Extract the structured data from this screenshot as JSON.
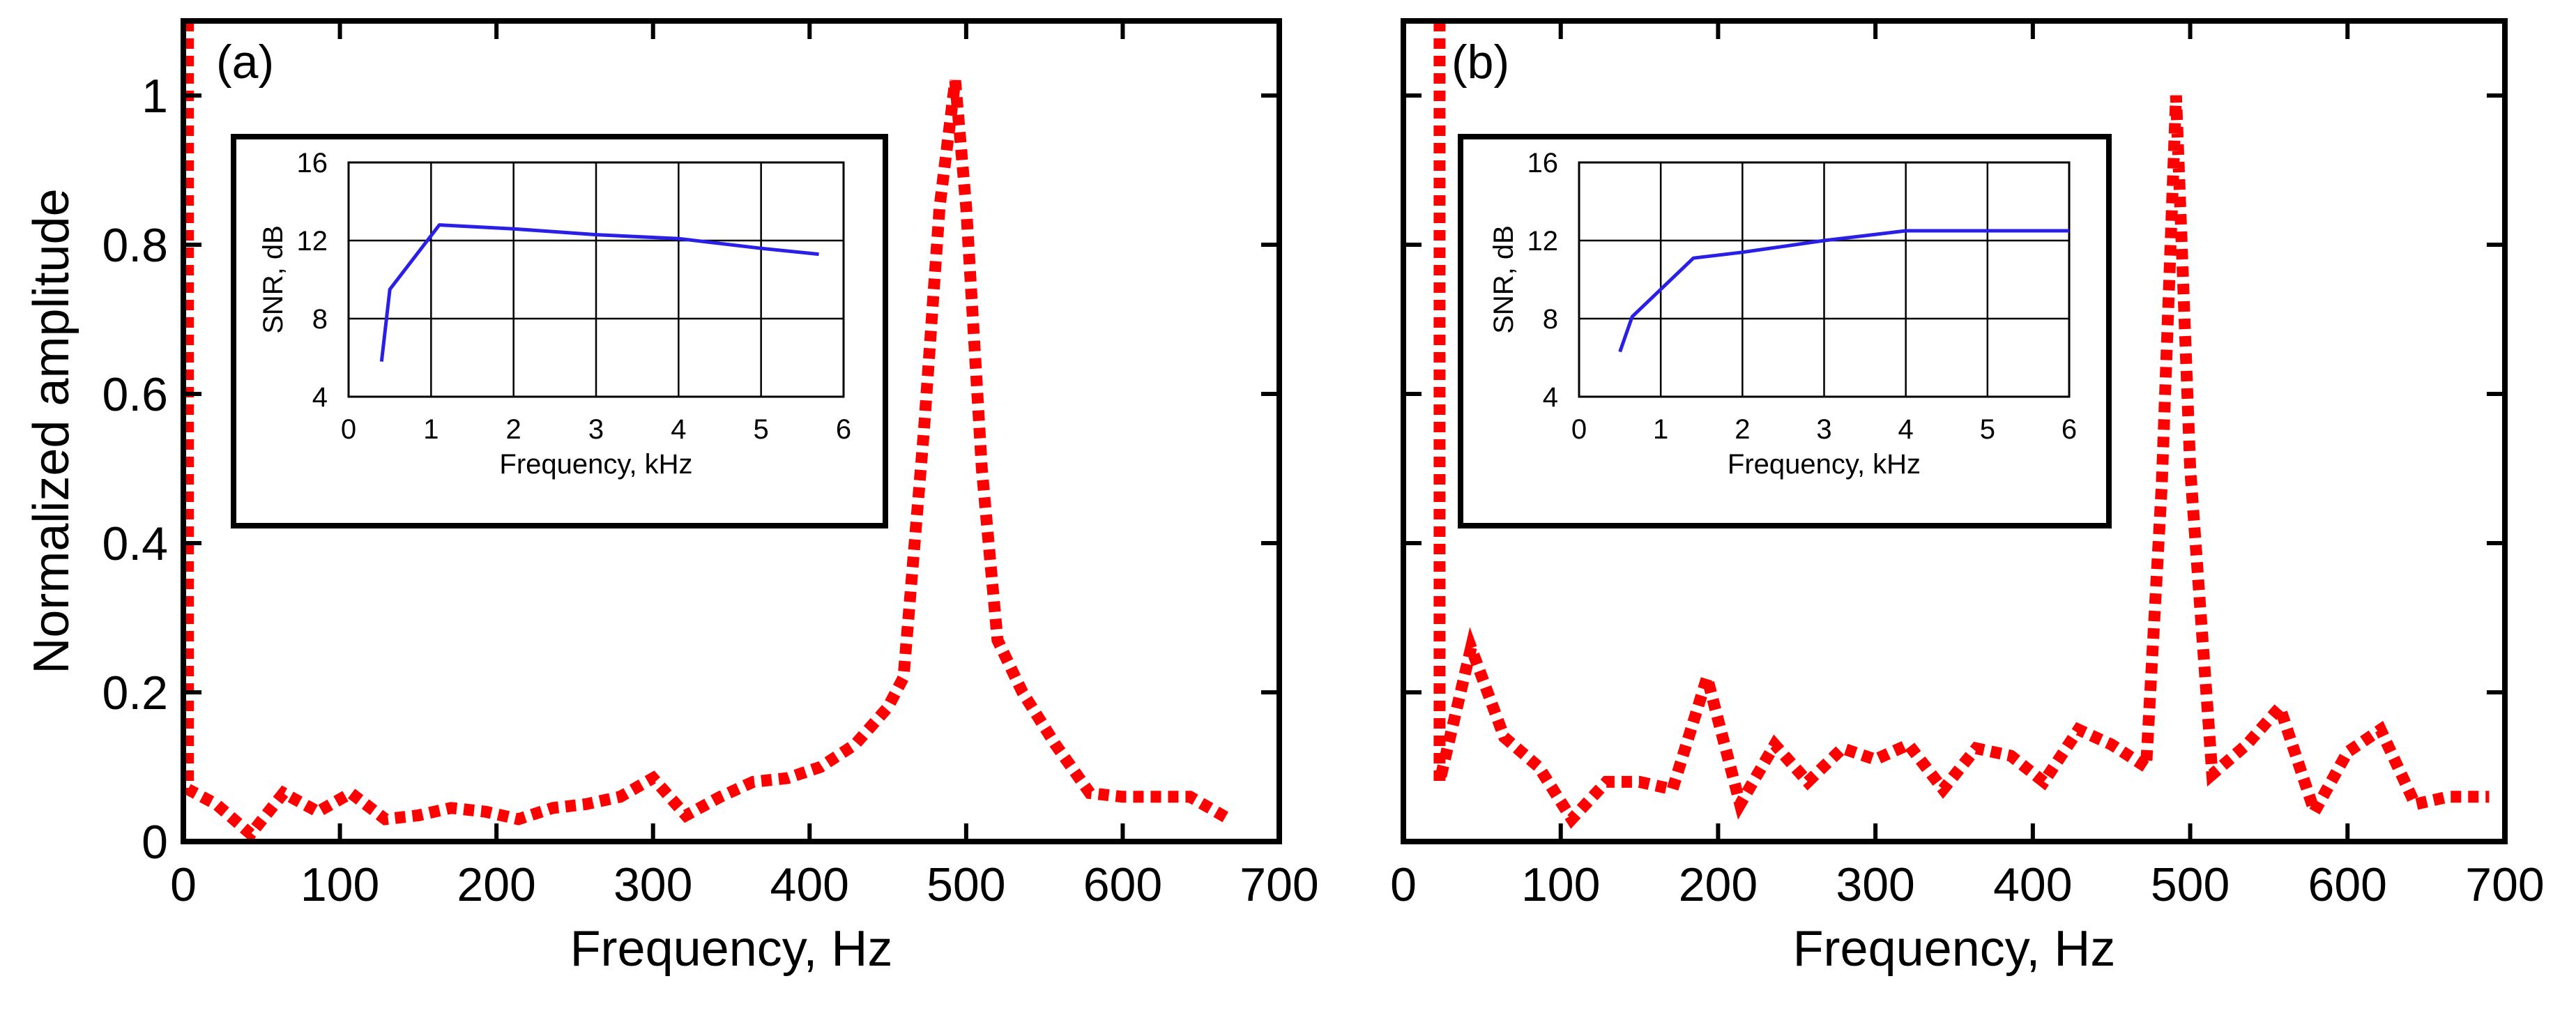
{
  "chart_data": [
    {
      "id": "a",
      "type": "line",
      "panel_label": "(a)",
      "xlabel": "Frequency, Hz",
      "ylabel": "Normalized amplitude",
      "xlim": [
        0,
        700
      ],
      "ylim": [
        0,
        1.1
      ],
      "xticks": [
        0,
        100,
        200,
        300,
        400,
        500,
        600,
        700
      ],
      "yticks": [
        0,
        0.2,
        0.4,
        0.6,
        0.8,
        1
      ],
      "ytick_labels": [
        "0",
        "0.2",
        "0.4",
        "0.6",
        "0.8",
        "1"
      ],
      "series": [
        {
          "color": "#ff0000",
          "style": "dotted",
          "x": [
            3,
            3,
            21,
            43,
            64,
            86,
            107,
            129,
            150,
            171,
            193,
            214,
            236,
            257,
            279,
            300,
            321,
            343,
            364,
            386,
            407,
            429,
            450,
            460,
            473,
            483,
            493,
            500,
            510,
            520,
            536,
            557,
            579,
            600,
            621,
            643,
            668
          ],
          "y": [
            1.1,
            0.07,
            0.05,
            0.01,
            0.065,
            0.04,
            0.065,
            0.03,
            0.035,
            0.045,
            0.04,
            0.03,
            0.045,
            0.05,
            0.06,
            0.085,
            0.035,
            0.06,
            0.08,
            0.085,
            0.1,
            0.13,
            0.18,
            0.22,
            0.55,
            0.85,
            1.02,
            0.85,
            0.5,
            0.27,
            0.2,
            0.13,
            0.065,
            0.06,
            0.06,
            0.06,
            0.03
          ]
        }
      ],
      "inset": {
        "type": "line",
        "xlabel": "Frequency, kHz",
        "ylabel": "SNR, dB",
        "xlim": [
          0,
          6
        ],
        "ylim": [
          4,
          16
        ],
        "xticks": [
          0,
          1,
          2,
          3,
          4,
          5,
          6
        ],
        "yticks": [
          4,
          8,
          12,
          16
        ],
        "grid": true,
        "series": [
          {
            "color": "#2a1fe6",
            "x": [
              0.4,
              0.5,
              1.1,
              2,
              3,
              4,
              5,
              5.7
            ],
            "y": [
              5.8,
              9.5,
              12.8,
              12.6,
              12.3,
              12.1,
              11.6,
              11.3
            ]
          }
        ]
      }
    },
    {
      "id": "b",
      "type": "line",
      "panel_label": "(b)",
      "xlabel": "Frequency, Hz",
      "ylabel": "",
      "xlim": [
        0,
        700
      ],
      "ylim": [
        0,
        1.1
      ],
      "xticks": [
        0,
        100,
        200,
        300,
        400,
        500,
        600,
        700
      ],
      "yticks": [
        0,
        0.2,
        0.4,
        0.6,
        0.8,
        1
      ],
      "ytick_labels": [],
      "series": [
        {
          "color": "#ff0000",
          "style": "dotted",
          "x": [
            23,
            23,
            43,
            64,
            86,
            107,
            129,
            150,
            171,
            193,
            214,
            236,
            257,
            279,
            300,
            321,
            343,
            364,
            386,
            407,
            429,
            450,
            472,
            482,
            491,
            500,
            514,
            536,
            557,
            579,
            600,
            621,
            643,
            664,
            690
          ],
          "y": [
            1.1,
            0.08,
            0.26,
            0.14,
            0.1,
            0.03,
            0.08,
            0.08,
            0.07,
            0.22,
            0.05,
            0.13,
            0.08,
            0.125,
            0.11,
            0.13,
            0.07,
            0.125,
            0.115,
            0.08,
            0.15,
            0.13,
            0.1,
            0.48,
            1.0,
            0.5,
            0.09,
            0.13,
            0.18,
            0.04,
            0.12,
            0.15,
            0.05,
            0.06,
            0.06
          ]
        }
      ],
      "inset": {
        "type": "line",
        "xlabel": "Frequency, kHz",
        "ylabel": "SNR, dB",
        "xlim": [
          0,
          6
        ],
        "ylim": [
          4,
          16
        ],
        "xticks": [
          0,
          1,
          2,
          3,
          4,
          5,
          6
        ],
        "yticks": [
          4,
          8,
          12,
          16
        ],
        "grid": true,
        "series": [
          {
            "color": "#2a1fe6",
            "x": [
              0.5,
              0.65,
              1.4,
              2,
              3,
              4,
              5,
              6
            ],
            "y": [
              6.3,
              8.1,
              11.1,
              11.4,
              12,
              12.5,
              12.5,
              12.5
            ]
          }
        ]
      }
    }
  ]
}
